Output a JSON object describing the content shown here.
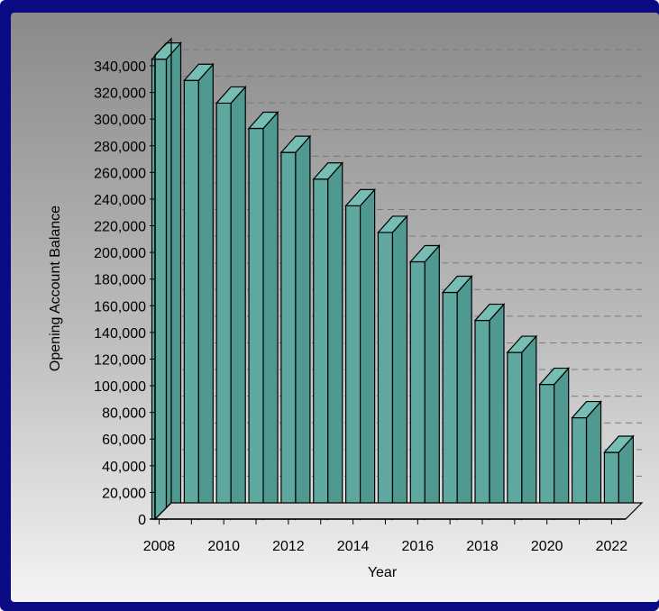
{
  "chart_data": {
    "type": "bar",
    "title": "",
    "xlabel": "Year",
    "ylabel": "Opening Account Balance",
    "ylim": [
      0,
      340000
    ],
    "yticks": [
      0,
      20000,
      40000,
      60000,
      80000,
      100000,
      120000,
      140000,
      160000,
      180000,
      200000,
      220000,
      240000,
      260000,
      280000,
      300000,
      320000,
      340000
    ],
    "ytick_labels": [
      "0",
      "20,000",
      "40,000",
      "60,000",
      "80,000",
      "100,000",
      "120,000",
      "140,000",
      "160,000",
      "180,000",
      "200,000",
      "220,000",
      "240,000",
      "260,000",
      "280,000",
      "300,000",
      "320,000",
      "340,000"
    ],
    "xtick_labels": [
      "2008",
      "2010",
      "2012",
      "2014",
      "2016",
      "2018",
      "2020",
      "2022"
    ],
    "categories": [
      "2008",
      "2009",
      "2010",
      "2011",
      "2012",
      "2013",
      "2014",
      "2015",
      "2016",
      "2017",
      "2018",
      "2019",
      "2020",
      "2021",
      "2022"
    ],
    "values": [
      345000,
      329000,
      312000,
      293000,
      275000,
      255000,
      235000,
      215000,
      193000,
      170000,
      149000,
      125000,
      101000,
      76000,
      50000
    ],
    "grid": true,
    "legend": "none",
    "bar_color": "#5fa8a0"
  }
}
